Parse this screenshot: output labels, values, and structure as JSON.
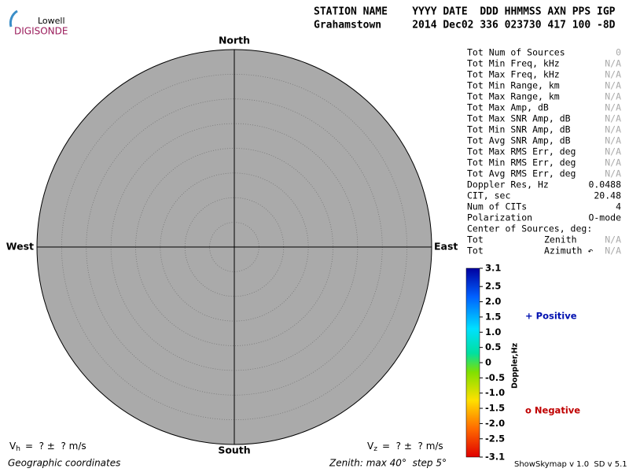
{
  "logo": {
    "top": "Lowell",
    "bottom": "DIGISONDE"
  },
  "header": {
    "labels": "STATION NAME    YYYY DATE  DDD HHMMSS AXN PPS IGP",
    "values": "Grahamstown     2014 Dec02 336 023730 417 100 -8D"
  },
  "compass": {
    "north": "North",
    "south": "South",
    "east": "East",
    "west": "West"
  },
  "stats": [
    {
      "label": "Tot Num of Sources",
      "value": "0",
      "color": "#aaa"
    },
    {
      "label": "Tot Min Freq, kHz",
      "value": "N/A",
      "color": "#aaa"
    },
    {
      "label": "Tot Max Freq, kHz",
      "value": "N/A",
      "color": "#aaa"
    },
    {
      "label": "Tot Min Range, km",
      "value": "N/A",
      "color": "#aaa"
    },
    {
      "label": "Tot Max Range, km",
      "value": "N/A",
      "color": "#aaa"
    },
    {
      "label": "Tot Max Amp, dB",
      "value": "N/A",
      "color": "#aaa"
    },
    {
      "label": "Tot Max SNR Amp, dB",
      "value": "N/A",
      "color": "#aaa"
    },
    {
      "label": "Tot Min SNR Amp, dB",
      "value": "N/A",
      "color": "#aaa"
    },
    {
      "label": "Tot Avg SNR Amp, dB",
      "value": "N/A",
      "color": "#aaa"
    },
    {
      "label": "Tot Max RMS Err, deg",
      "value": "N/A",
      "color": "#aaa"
    },
    {
      "label": "Tot Min RMS Err, deg",
      "value": "N/A",
      "color": "#aaa"
    },
    {
      "label": "Tot Avg RMS Err, deg",
      "value": "N/A",
      "color": "#aaa"
    },
    {
      "label": "Doppler Res, Hz",
      "value": "0.0488",
      "color": "#000"
    },
    {
      "label": "CIT, sec",
      "value": "20.48",
      "color": "#000"
    },
    {
      "label": "Num of CITs",
      "value": "4",
      "color": "#000"
    },
    {
      "label": "Polarization",
      "value": "O-mode",
      "color": "#000"
    },
    {
      "label": "Center of Sources, deg:"
    },
    {
      "label": "Tot",
      "middle": "Zenith",
      "value": "N/A",
      "color": "#aaa"
    },
    {
      "label": "Tot",
      "middle": "Azimuth ↶",
      "value": "N/A",
      "color": "#aaa"
    }
  ],
  "colorbar": {
    "title": "Doppler,Hz",
    "lim": [
      -3.1,
      3.1
    ],
    "ticks": [
      3.1,
      2.5,
      {
        "value": 2,
        "label": "2.0"
      },
      1.5,
      {
        "value": 1,
        "label": "1.0"
      },
      0.5,
      0,
      -0.5,
      {
        "value": -1,
        "label": "-1.0"
      },
      -1.5,
      {
        "value": -2,
        "label": "-2.0"
      },
      -2.5,
      -3.1
    ]
  },
  "legend": {
    "positive": "+ Positive",
    "negative": "o Negative"
  },
  "velocity": {
    "vh": {
      "symbol": "V",
      "sub": "h",
      "text": "=  ? ±  ? m/s"
    },
    "vz": {
      "symbol": "V",
      "sub": "z",
      "text": "=  ? ±  ? m/s"
    }
  },
  "footer": {
    "coords": "Geographic coordinates",
    "zenith": "Zenith: max 40°  step 5°",
    "version": "ShowSkymap v 1.0  SD v 5.1"
  }
}
